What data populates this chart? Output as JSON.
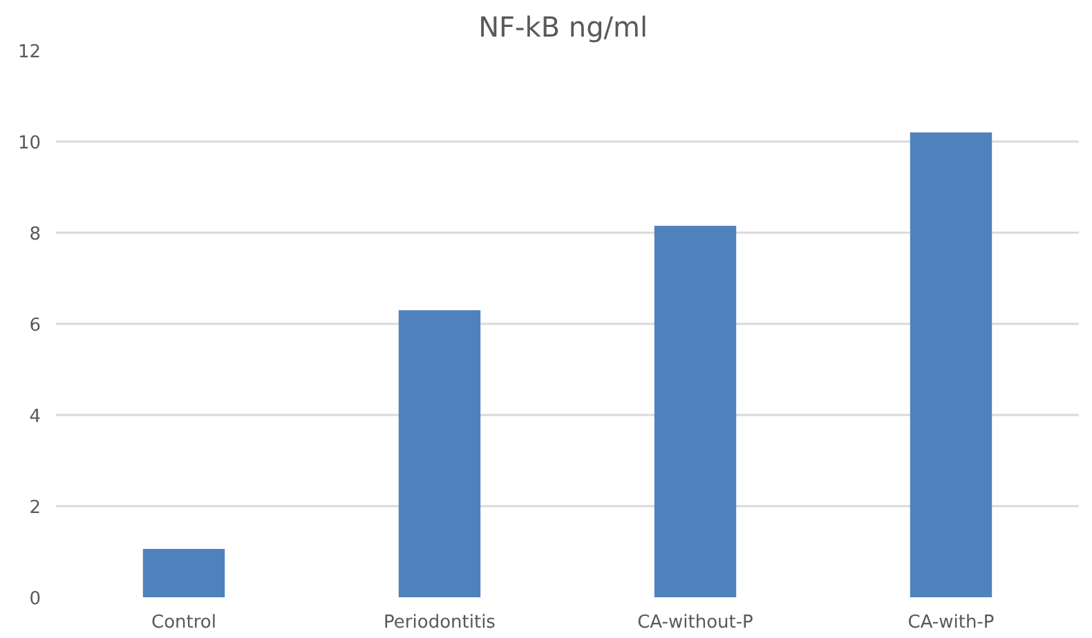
{
  "chart_data": {
    "type": "bar",
    "title": "NF-kB  ng/ml",
    "categories": [
      "Control",
      "Periodontitis",
      "CA-without-P",
      "CA-with-P"
    ],
    "values": [
      1.06,
      6.3,
      8.15,
      10.2
    ],
    "color": "#4f81bd",
    "ylim": [
      0,
      12
    ],
    "yticks": [
      0,
      2,
      4,
      6,
      8,
      10,
      12
    ],
    "grid": "y"
  }
}
